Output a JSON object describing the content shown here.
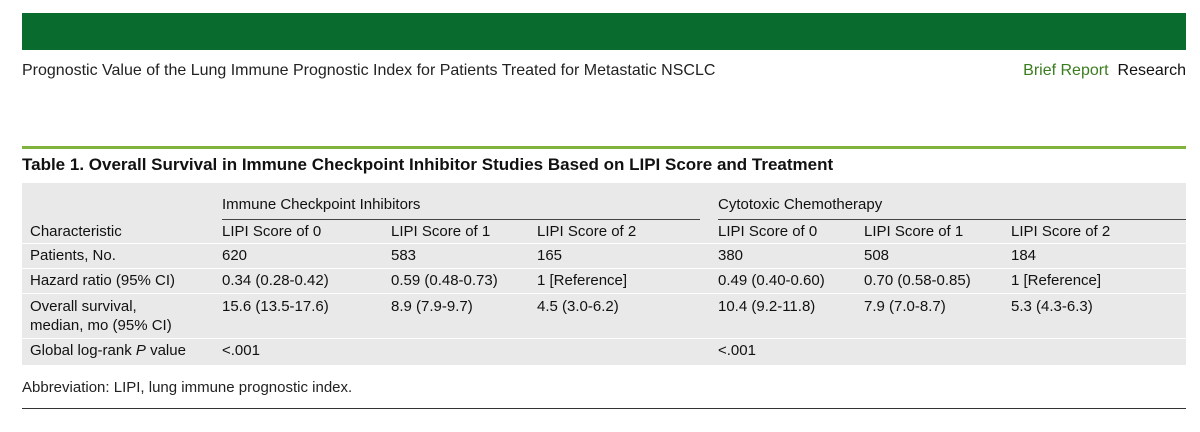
{
  "header": {
    "running_title": "Prognostic Value of the Lung Immune Prognostic Index for Patients Treated for Metastatic NSCLC",
    "section_primary": "Brief Report",
    "section_secondary": "Research"
  },
  "table": {
    "title": "Table 1. Overall Survival in Immune Checkpoint Inhibitor Studies Based on LIPI Score and Treatment",
    "group_headers": [
      "Immune Checkpoint Inhibitors",
      "Cytotoxic Chemotherapy"
    ],
    "characteristic_header": "Characteristic",
    "column_headers": [
      "LIPI Score of 0",
      "LIPI Score of 1",
      "LIPI Score of 2",
      "LIPI Score of 0",
      "LIPI Score of 1",
      "LIPI Score of 2"
    ],
    "rows": [
      {
        "label": "Patients, No.",
        "values": [
          "620",
          "583",
          "165",
          "380",
          "508",
          "184"
        ]
      },
      {
        "label": "Hazard ratio (95% CI)",
        "values": [
          "0.34 (0.28-0.42)",
          "0.59 (0.48-0.73)",
          "1 [Reference]",
          "0.49 (0.40-0.60)",
          "0.70 (0.58-0.85)",
          "1 [Reference]"
        ]
      },
      {
        "label_line1": "Overall survival,",
        "label_line2": "median, mo (95% CI)",
        "values": [
          "15.6 (13.5-17.6)",
          "8.9 (7.9-9.7)",
          "4.5 (3.0-6.2)",
          "10.4 (9.2-11.8)",
          "7.9 (7.0-8.7)",
          "5.3 (4.3-6.3)"
        ]
      },
      {
        "label_prefix": "Global log-rank ",
        "label_italic": "P",
        "label_suffix": " value",
        "values": [
          "<.001",
          "",
          "",
          "<.001",
          "",
          ""
        ]
      }
    ]
  },
  "footnote": "Abbreviation: LIPI, lung immune prognostic index."
}
